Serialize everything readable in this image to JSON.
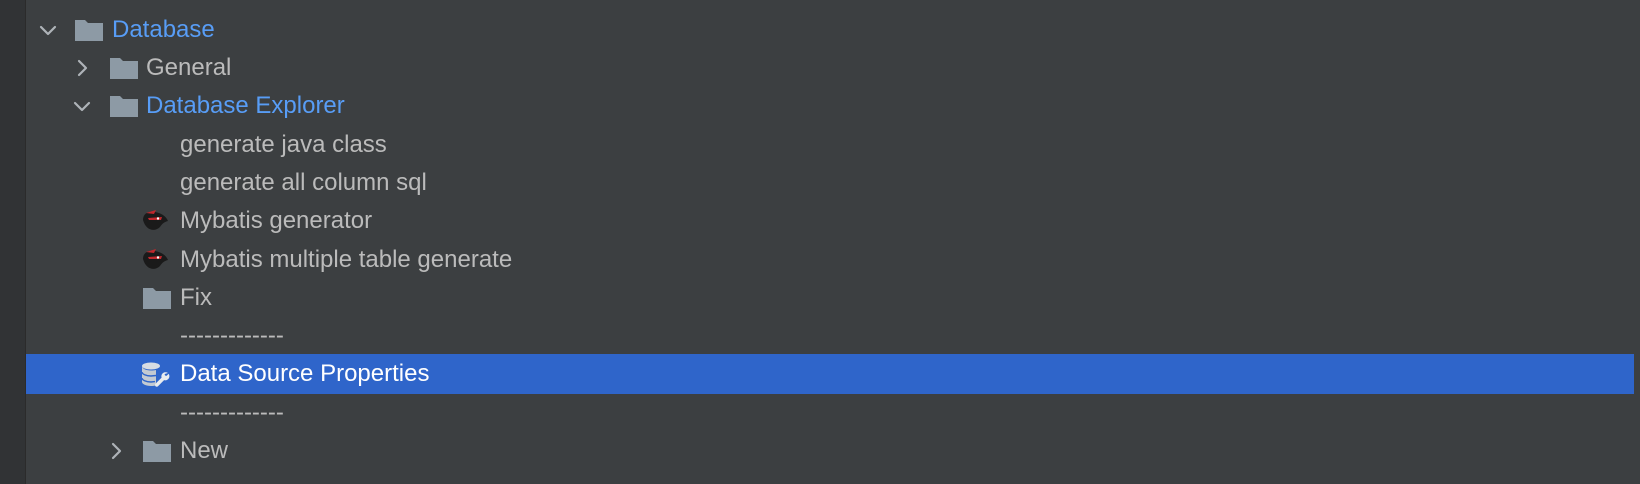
{
  "tree": {
    "top_partial_icon": "gear-icon",
    "items": [
      {
        "label": "Database",
        "expanded": true,
        "icon": "folder-icon",
        "highlighted": true
      },
      {
        "label": "General",
        "expanded": false,
        "icon": "folder-icon",
        "highlighted": false
      },
      {
        "label": "Database Explorer",
        "expanded": true,
        "icon": "folder-icon",
        "highlighted": true
      },
      {
        "label": "generate java class",
        "icon": ""
      },
      {
        "label": "generate all column sql",
        "icon": ""
      },
      {
        "label": "Mybatis generator",
        "icon": "mybatis-bird-icon"
      },
      {
        "label": "Mybatis multiple table generate",
        "icon": "mybatis-bird-icon"
      },
      {
        "label": "Fix",
        "icon": "folder-icon"
      },
      {
        "label": "-------------",
        "icon": ""
      },
      {
        "label": "Data Source Properties",
        "icon": "database-wrench-icon",
        "selected": true
      },
      {
        "label": "-------------",
        "icon": ""
      },
      {
        "label": "New",
        "expanded": false,
        "icon": "folder-icon"
      }
    ]
  },
  "colors": {
    "background": "#3c3f41",
    "text": "#bbbbbb",
    "highlight_text": "#589df6",
    "selection": "#2f65ca",
    "folder": "#8d9aa5"
  }
}
